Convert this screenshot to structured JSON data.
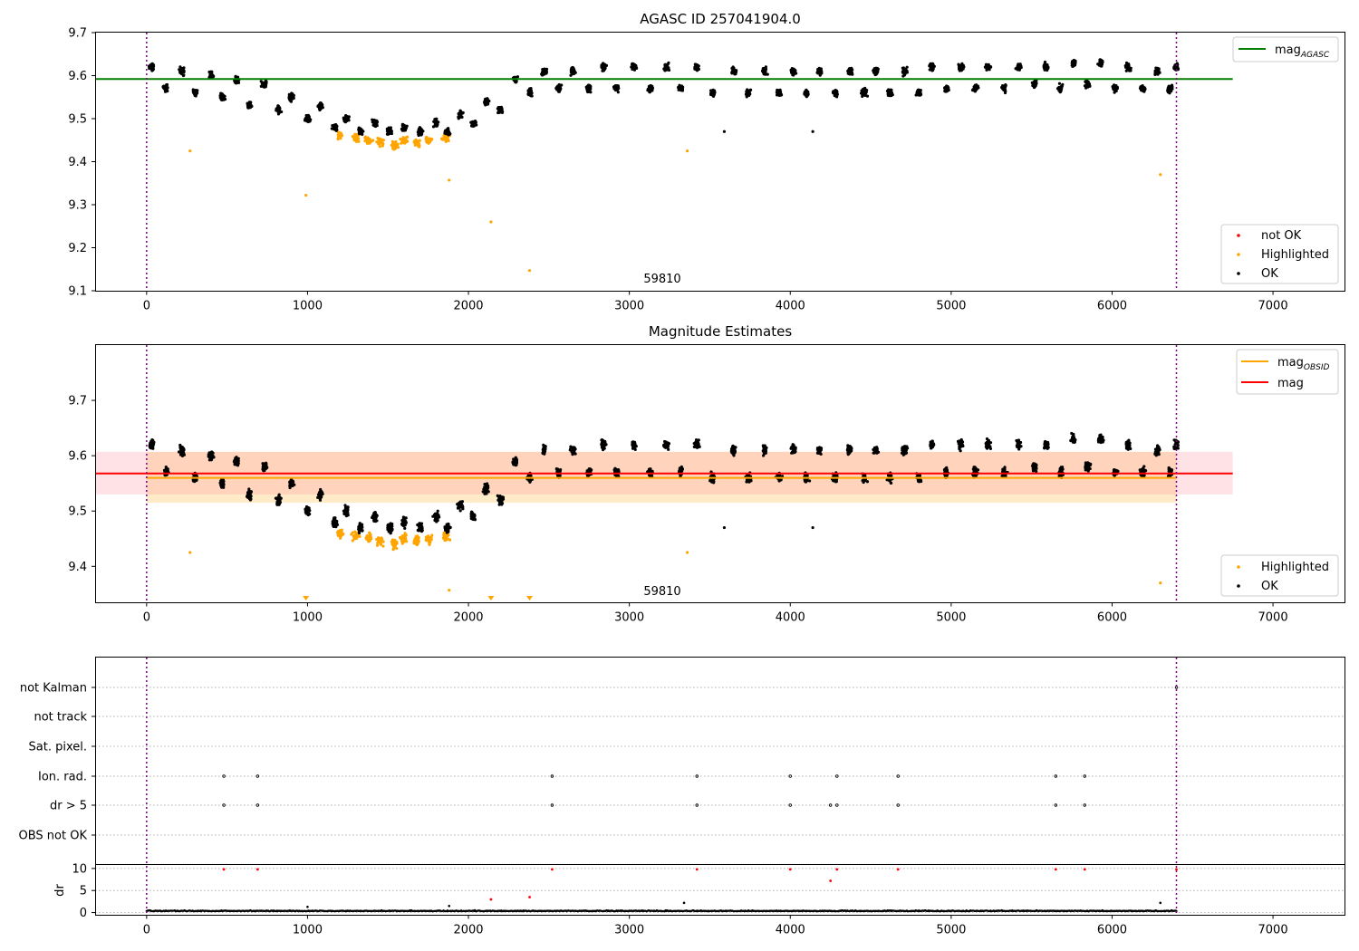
{
  "chart_data": [
    {
      "type": "scatter",
      "title": "AGASC ID 257041904.0",
      "xlim": [
        -320,
        7450
      ],
      "ylim": [
        9.1,
        9.7
      ],
      "x_ticks": [
        0,
        1000,
        2000,
        3000,
        4000,
        5000,
        6000,
        7000
      ],
      "y_ticks": [
        9.1,
        9.2,
        9.3,
        9.4,
        9.5,
        9.6,
        9.7
      ],
      "annotation": "59810",
      "annotation_x": 3200,
      "vlines": [
        0,
        6400
      ],
      "hlines": [
        {
          "name": "mag_AGASC",
          "value": 9.592,
          "x_range": [
            -320,
            6750
          ],
          "color": "#008000"
        }
      ],
      "legend_lines": [
        {
          "name": "mag",
          "sub": "AGASC",
          "color": "#008000"
        }
      ],
      "legend_points": [
        {
          "name": "not OK",
          "color": "#ff0000"
        },
        {
          "name": "Highlighted",
          "color": "#ffa500"
        },
        {
          "name": "OK",
          "color": "#000000"
        }
      ],
      "series": [
        {
          "name": "OK",
          "color": "#000000",
          "points": [
            [
              30,
              9.62
            ],
            [
              120,
              9.57
            ],
            [
              220,
              9.61
            ],
            [
              300,
              9.56
            ],
            [
              400,
              9.6
            ],
            [
              470,
              9.55
            ],
            [
              560,
              9.59
            ],
            [
              640,
              9.53
            ],
            [
              730,
              9.58
            ],
            [
              820,
              9.52
            ],
            [
              900,
              9.55
            ],
            [
              1000,
              9.5
            ],
            [
              1080,
              9.53
            ],
            [
              1170,
              9.48
            ],
            [
              1240,
              9.5
            ],
            [
              1330,
              9.47
            ],
            [
              1420,
              9.49
            ],
            [
              1510,
              9.47
            ],
            [
              1600,
              9.48
            ],
            [
              1700,
              9.47
            ],
            [
              1800,
              9.49
            ],
            [
              1870,
              9.47
            ],
            [
              1950,
              9.51
            ],
            [
              2030,
              9.49
            ],
            [
              2110,
              9.54
            ],
            [
              2200,
              9.52
            ],
            [
              2290,
              9.59
            ],
            [
              2380,
              9.56
            ],
            [
              2470,
              9.61
            ],
            [
              2560,
              9.57
            ],
            [
              2650,
              9.61
            ],
            [
              2750,
              9.57
            ],
            [
              2840,
              9.62
            ],
            [
              2920,
              9.57
            ],
            [
              3030,
              9.62
            ],
            [
              3130,
              9.57
            ],
            [
              3230,
              9.62
            ],
            [
              3320,
              9.57
            ],
            [
              3420,
              9.62
            ],
            [
              3520,
              9.56
            ],
            [
              3590,
              9.47
            ],
            [
              3650,
              9.61
            ],
            [
              3740,
              9.56
            ],
            [
              3840,
              9.61
            ],
            [
              3930,
              9.56
            ],
            [
              4020,
              9.61
            ],
            [
              4100,
              9.56
            ],
            [
              4140,
              9.47
            ],
            [
              4180,
              9.61
            ],
            [
              4280,
              9.56
            ],
            [
              4370,
              9.61
            ],
            [
              4460,
              9.56
            ],
            [
              4530,
              9.61
            ],
            [
              4620,
              9.56
            ],
            [
              4710,
              9.61
            ],
            [
              4800,
              9.56
            ],
            [
              4880,
              9.62
            ],
            [
              4970,
              9.57
            ],
            [
              5060,
              9.62
            ],
            [
              5150,
              9.57
            ],
            [
              5230,
              9.62
            ],
            [
              5330,
              9.57
            ],
            [
              5420,
              9.62
            ],
            [
              5520,
              9.58
            ],
            [
              5590,
              9.62
            ],
            [
              5680,
              9.57
            ],
            [
              5760,
              9.63
            ],
            [
              5850,
              9.58
            ],
            [
              5930,
              9.63
            ],
            [
              6020,
              9.57
            ],
            [
              6100,
              9.62
            ],
            [
              6190,
              9.57
            ],
            [
              6280,
              9.61
            ],
            [
              6360,
              9.57
            ],
            [
              6400,
              9.62
            ]
          ]
        },
        {
          "name": "Highlighted",
          "color": "#ffa500",
          "points": [
            [
              270,
              9.425
            ],
            [
              990,
              9.322
            ],
            [
              1200,
              9.46
            ],
            [
              1300,
              9.455
            ],
            [
              1380,
              9.45
            ],
            [
              1450,
              9.445
            ],
            [
              1540,
              9.44
            ],
            [
              1600,
              9.45
            ],
            [
              1680,
              9.445
            ],
            [
              1750,
              9.45
            ],
            [
              1860,
              9.455
            ],
            [
              1880,
              9.357
            ],
            [
              2140,
              9.26
            ],
            [
              2380,
              9.147
            ],
            [
              3360,
              9.425
            ],
            [
              6300,
              9.37
            ]
          ]
        }
      ]
    },
    {
      "type": "scatter",
      "title": "Magnitude Estimates",
      "xlim": [
        -320,
        7450
      ],
      "ylim": [
        9.335,
        9.8
      ],
      "x_ticks": [
        0,
        1000,
        2000,
        3000,
        4000,
        5000,
        6000,
        7000
      ],
      "y_ticks": [
        9.4,
        9.5,
        9.6,
        9.7
      ],
      "annotation": "59810",
      "annotation_x": 3200,
      "vlines": [
        0,
        6400
      ],
      "hlines": [
        {
          "name": "mag_OBSID",
          "value": 9.56,
          "x_range": [
            0,
            6400
          ],
          "color": "#ffa500"
        },
        {
          "name": "mag",
          "value": 9.568,
          "x_range": [
            -320,
            6750
          ],
          "color": "#ff0000"
        }
      ],
      "bands": [
        {
          "name": "mag_OBSID range",
          "y_range": [
            9.515,
            9.607
          ],
          "x_range": [
            0,
            6400
          ],
          "color": "#ffa500"
        },
        {
          "name": "mag range",
          "y_range": [
            9.53,
            9.607
          ],
          "x_range": [
            -320,
            6750
          ],
          "color": "#ff8c9a"
        }
      ],
      "legend_lines": [
        {
          "name": "mag",
          "sub": "OBSID",
          "color": "#ffa500"
        },
        {
          "name": "mag",
          "sub": "",
          "color": "#ff0000"
        }
      ],
      "legend_points": [
        {
          "name": "Highlighted",
          "color": "#ffa500"
        },
        {
          "name": "OK",
          "color": "#000000"
        }
      ],
      "series": [
        {
          "name": "OK",
          "color": "#000000",
          "points": [
            [
              30,
              9.62
            ],
            [
              120,
              9.57
            ],
            [
              220,
              9.61
            ],
            [
              300,
              9.56
            ],
            [
              400,
              9.6
            ],
            [
              470,
              9.55
            ],
            [
              560,
              9.59
            ],
            [
              640,
              9.53
            ],
            [
              730,
              9.58
            ],
            [
              820,
              9.52
            ],
            [
              900,
              9.55
            ],
            [
              1000,
              9.5
            ],
            [
              1080,
              9.53
            ],
            [
              1170,
              9.48
            ],
            [
              1240,
              9.5
            ],
            [
              1330,
              9.47
            ],
            [
              1420,
              9.49
            ],
            [
              1510,
              9.47
            ],
            [
              1600,
              9.48
            ],
            [
              1700,
              9.47
            ],
            [
              1800,
              9.49
            ],
            [
              1870,
              9.47
            ],
            [
              1950,
              9.51
            ],
            [
              2030,
              9.49
            ],
            [
              2110,
              9.54
            ],
            [
              2200,
              9.52
            ],
            [
              2290,
              9.59
            ],
            [
              2380,
              9.56
            ],
            [
              2470,
              9.61
            ],
            [
              2560,
              9.57
            ],
            [
              2650,
              9.61
            ],
            [
              2750,
              9.57
            ],
            [
              2840,
              9.62
            ],
            [
              2920,
              9.57
            ],
            [
              3030,
              9.62
            ],
            [
              3130,
              9.57
            ],
            [
              3230,
              9.62
            ],
            [
              3320,
              9.57
            ],
            [
              3420,
              9.62
            ],
            [
              3520,
              9.56
            ],
            [
              3590,
              9.47
            ],
            [
              3650,
              9.61
            ],
            [
              3740,
              9.56
            ],
            [
              3840,
              9.61
            ],
            [
              3930,
              9.56
            ],
            [
              4020,
              9.61
            ],
            [
              4100,
              9.56
            ],
            [
              4140,
              9.47
            ],
            [
              4180,
              9.61
            ],
            [
              4280,
              9.56
            ],
            [
              4370,
              9.61
            ],
            [
              4460,
              9.56
            ],
            [
              4530,
              9.61
            ],
            [
              4620,
              9.56
            ],
            [
              4710,
              9.61
            ],
            [
              4800,
              9.56
            ],
            [
              4880,
              9.62
            ],
            [
              4970,
              9.57
            ],
            [
              5060,
              9.62
            ],
            [
              5150,
              9.57
            ],
            [
              5230,
              9.62
            ],
            [
              5330,
              9.57
            ],
            [
              5420,
              9.62
            ],
            [
              5520,
              9.58
            ],
            [
              5590,
              9.62
            ],
            [
              5680,
              9.57
            ],
            [
              5760,
              9.63
            ],
            [
              5850,
              9.58
            ],
            [
              5930,
              9.63
            ],
            [
              6020,
              9.57
            ],
            [
              6100,
              9.62
            ],
            [
              6190,
              9.57
            ],
            [
              6280,
              9.61
            ],
            [
              6360,
              9.57
            ],
            [
              6400,
              9.62
            ]
          ]
        },
        {
          "name": "Highlighted",
          "color": "#ffa500",
          "points": [
            [
              270,
              9.425
            ],
            [
              1200,
              9.46
            ],
            [
              1300,
              9.455
            ],
            [
              1380,
              9.45
            ],
            [
              1450,
              9.445
            ],
            [
              1540,
              9.44
            ],
            [
              1600,
              9.45
            ],
            [
              1680,
              9.445
            ],
            [
              1750,
              9.45
            ],
            [
              1860,
              9.455
            ],
            [
              1880,
              9.357
            ],
            [
              3360,
              9.425
            ],
            [
              6300,
              9.37
            ]
          ]
        }
      ],
      "below_limit_markers": [
        990,
        2140,
        2380
      ]
    },
    {
      "type": "scatter",
      "title": "",
      "xlim": [
        -320,
        7450
      ],
      "x_ticks": [
        0,
        1000,
        2000,
        3000,
        4000,
        5000,
        6000,
        7000
      ],
      "vlines": [
        0,
        6400
      ],
      "flag_rows": [
        "not Kalman",
        "not track",
        "Sat. pixel.",
        "Ion. rad.",
        "dr > 5",
        "OBS not OK"
      ],
      "flags": [
        {
          "row": "not Kalman",
          "x": [
            6400
          ]
        },
        {
          "row": "Ion. rad.",
          "x": [
            480,
            690,
            2520,
            3420,
            4000,
            4290,
            4670,
            5650,
            5830
          ]
        },
        {
          "row": "dr > 5",
          "x": [
            480,
            690,
            2520,
            3420,
            4000,
            4250,
            4290,
            4670,
            5650,
            5830
          ]
        }
      ],
      "dr_subplot": {
        "ylabel": "dr",
        "ylim": [
          -0.5,
          10.8
        ],
        "y_ticks": [
          0,
          5,
          10
        ],
        "baseline_points": [
          [
            0,
            0.3
          ],
          [
            500,
            0.35
          ],
          [
            1000,
            0.3
          ],
          [
            1500,
            0.35
          ],
          [
            2000,
            0.3
          ],
          [
            2500,
            0.35
          ],
          [
            3000,
            0.3
          ],
          [
            3500,
            0.35
          ],
          [
            4000,
            0.3
          ],
          [
            4500,
            0.35
          ],
          [
            5000,
            0.3
          ],
          [
            5500,
            0.35
          ],
          [
            6000,
            0.3
          ],
          [
            6400,
            0.3
          ]
        ],
        "outliers_black": [
          [
            1000,
            1.3
          ],
          [
            1880,
            1.5
          ],
          [
            3340,
            2.2
          ],
          [
            6300,
            2.2
          ]
        ],
        "outliers_red": [
          [
            480,
            9.8
          ],
          [
            690,
            9.8
          ],
          [
            2140,
            3.0
          ],
          [
            2380,
            3.5
          ],
          [
            2520,
            9.8
          ],
          [
            3420,
            9.8
          ],
          [
            4000,
            9.8
          ],
          [
            4250,
            7.2
          ],
          [
            4290,
            9.8
          ],
          [
            4670,
            9.8
          ],
          [
            5650,
            9.8
          ],
          [
            5830,
            9.8
          ],
          [
            6400,
            9.8
          ]
        ]
      }
    }
  ]
}
